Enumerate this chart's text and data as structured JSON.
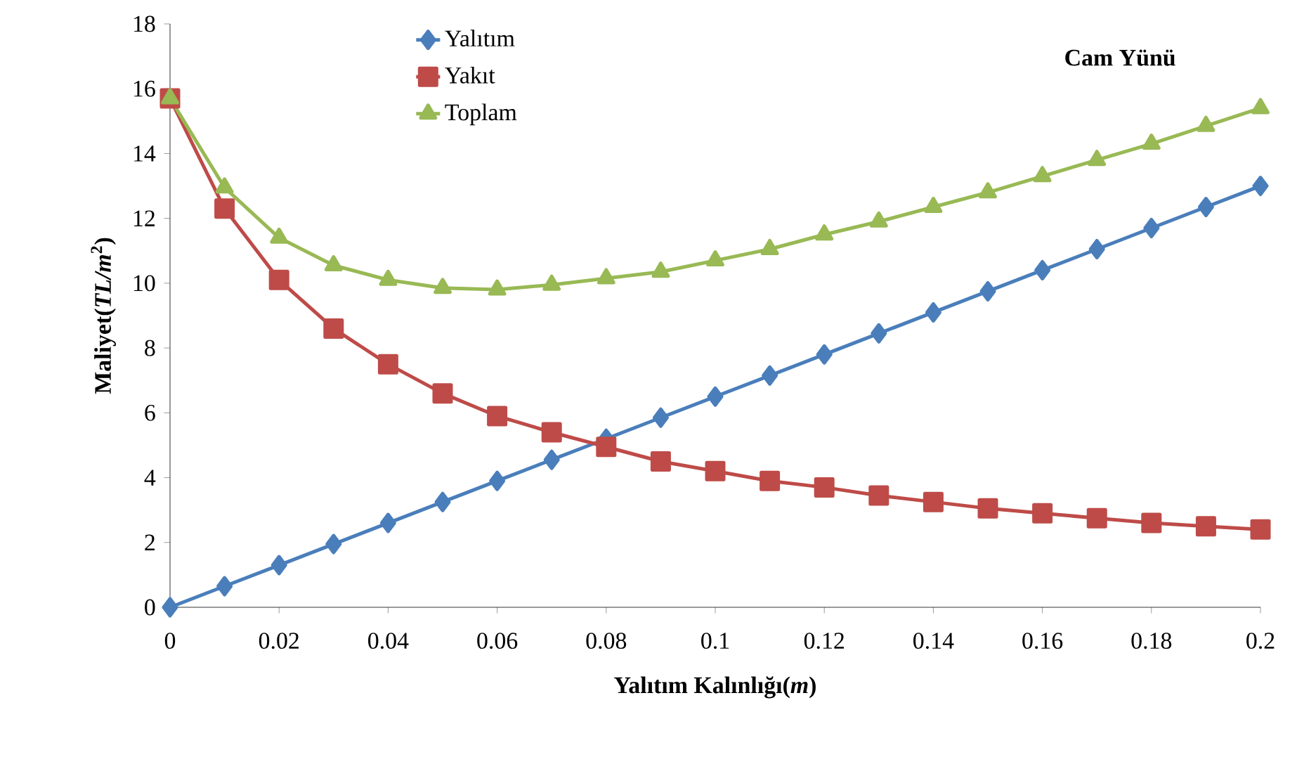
{
  "chart_data": {
    "type": "line",
    "xlabel": "Yalıtım Kalınlığı(*m*)",
    "ylabel": "Maliyet(*TL/m*$^{2}$)",
    "annotations": [
      "Cam Yünü"
    ],
    "x": [
      0,
      0.01,
      0.02,
      0.03,
      0.04,
      0.05,
      0.06,
      0.07,
      0.08,
      0.09,
      0.1,
      0.11,
      0.12,
      0.13,
      0.14,
      0.15,
      0.16,
      0.17,
      0.18,
      0.19,
      0.2
    ],
    "series": [
      {
        "name": "Yalıtım",
        "color": "#4a7ebb",
        "marker": "diamond",
        "values": [
          0,
          0.65,
          1.3,
          1.95,
          2.6,
          3.25,
          3.9,
          4.55,
          5.2,
          5.85,
          6.5,
          7.15,
          7.8,
          8.45,
          9.1,
          9.75,
          10.4,
          11.05,
          11.7,
          12.35,
          13.0
        ]
      },
      {
        "name": "Yakıt",
        "color": "#be4b48",
        "marker": "square",
        "values": [
          15.7,
          12.3,
          10.1,
          8.6,
          7.5,
          6.6,
          5.9,
          5.4,
          4.95,
          4.5,
          4.2,
          3.9,
          3.7,
          3.45,
          3.25,
          3.05,
          2.9,
          2.75,
          2.6,
          2.5,
          2.4
        ]
      },
      {
        "name": "Toplam",
        "color": "#98b954",
        "marker": "triangle",
        "values": [
          15.7,
          12.95,
          11.4,
          10.55,
          10.1,
          9.85,
          9.8,
          9.95,
          10.15,
          10.35,
          10.7,
          11.05,
          11.5,
          11.9,
          12.35,
          12.8,
          13.3,
          13.8,
          14.3,
          14.85,
          15.4
        ]
      }
    ],
    "xlim": [
      0,
      0.2
    ],
    "ylim": [
      0,
      18
    ],
    "xticks": [
      0,
      0.02,
      0.04,
      0.06,
      0.08,
      0.1,
      0.12,
      0.14,
      0.16,
      0.18,
      0.2
    ],
    "yticks": [
      0,
      2,
      4,
      6,
      8,
      10,
      12,
      14,
      16,
      18
    ],
    "grid": false,
    "legend": "top",
    "line_style": "solid"
  }
}
